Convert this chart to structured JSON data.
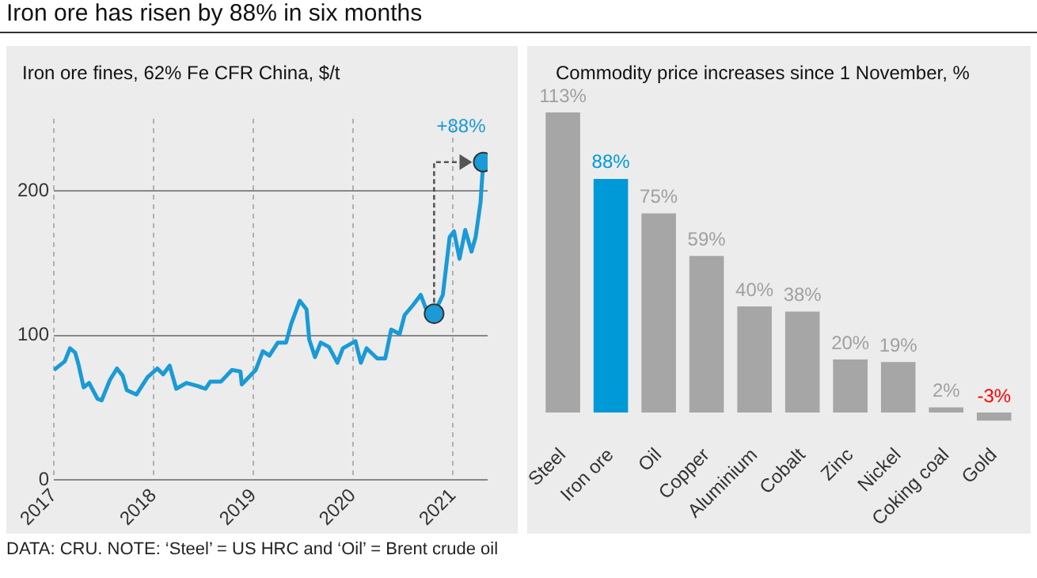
{
  "chart_data": [
    {
      "type": "line",
      "title": "Iron ore has risen by 88% in six months",
      "subtitle": "Iron ore fines, 62% Fe CFR China, $/t",
      "xlim": [
        "2017-01-01",
        "2021-05-08"
      ],
      "xticks": [
        "2017",
        "2018",
        "2019",
        "2020",
        "2021"
      ],
      "ylim": [
        0,
        250
      ],
      "yticks": [
        0,
        100,
        200
      ],
      "grid": true,
      "legend": false,
      "series": [
        {
          "color": "#1a9ad6",
          "marker": "none",
          "x": [
            "2017-01-01",
            "2017-02-10",
            "2017-03-01",
            "2017-03-20",
            "2017-04-01",
            "2017-04-20",
            "2017-05-10",
            "2017-06-10",
            "2017-06-25",
            "2017-07-25",
            "2017-08-20",
            "2017-09-10",
            "2017-09-25",
            "2017-10-30",
            "2017-12-10",
            "2018-01-15",
            "2018-02-05",
            "2018-03-01",
            "2018-03-25",
            "2018-05-01",
            "2018-06-10",
            "2018-07-10",
            "2018-07-28",
            "2018-09-05",
            "2018-10-15",
            "2018-11-15",
            "2018-11-20",
            "2019-01-10",
            "2019-02-05",
            "2019-03-01",
            "2019-04-01",
            "2019-05-01",
            "2019-05-20",
            "2019-06-20",
            "2019-07-15",
            "2019-07-25",
            "2019-08-15",
            "2019-09-05",
            "2019-10-05",
            "2019-11-05",
            "2019-11-25",
            "2020-01-10",
            "2020-01-30",
            "2020-02-20",
            "2020-03-30",
            "2020-04-28",
            "2020-05-20",
            "2020-06-20",
            "2020-07-08",
            "2020-08-08",
            "2020-09-05",
            "2020-09-25",
            "2020-10-24",
            "2020-11-25",
            "2020-12-20",
            "2021-01-05",
            "2021-01-25",
            "2021-02-15",
            "2021-03-10",
            "2021-03-25",
            "2021-04-12",
            "2021-04-22"
          ],
          "values": [
            76,
            82,
            91,
            88,
            80,
            64,
            67,
            56,
            55,
            69,
            77,
            72,
            62,
            59,
            71,
            77,
            73,
            79,
            63,
            67,
            65,
            63,
            68,
            68,
            76,
            75,
            66,
            76,
            89,
            86,
            95,
            95,
            108,
            124,
            118,
            97,
            85,
            95,
            92,
            81,
            91,
            96,
            81,
            91,
            84,
            84,
            104,
            101,
            114,
            121,
            128,
            118,
            115,
            128,
            168,
            172,
            153,
            173,
            158,
            168,
            192,
            220
          ]
        },
        {
          "type": "scatter",
          "color": "#1a9ad6",
          "marker": "circle",
          "x": [
            "2020-10-24",
            "2021-04-22"
          ],
          "values": [
            115,
            220
          ]
        }
      ],
      "annotations": [
        {
          "text": "+88%",
          "x": "2021-04-22",
          "y": 220
        },
        "DATA: CRU. NOTE: ‘Steel’ = US HRC and ‘Oil’ = Brent crude oil"
      ]
    },
    {
      "type": "bar",
      "title": "Commodity price increases since 1 November, %",
      "categories": [
        "Steel",
        "Iron ore",
        "Oil",
        "Copper",
        "Aluminium",
        "Cobalt",
        "Zinc",
        "Nickel",
        "Coking coal",
        "Gold"
      ],
      "values": [
        113,
        88,
        75,
        59,
        40,
        38,
        20,
        19,
        2,
        -3
      ],
      "colors": [
        "#a6a6a6",
        "#0099d8",
        "#a6a6a6",
        "#a6a6a6",
        "#a6a6a6",
        "#a6a6a6",
        "#a6a6a6",
        "#a6a6a6",
        "#a6a6a6",
        "#a6a6a6"
      ],
      "value_labels": [
        "113%",
        "88%",
        "75%",
        "59%",
        "40%",
        "38%",
        "20%",
        "19%",
        "2%",
        "-3%"
      ]
    }
  ]
}
